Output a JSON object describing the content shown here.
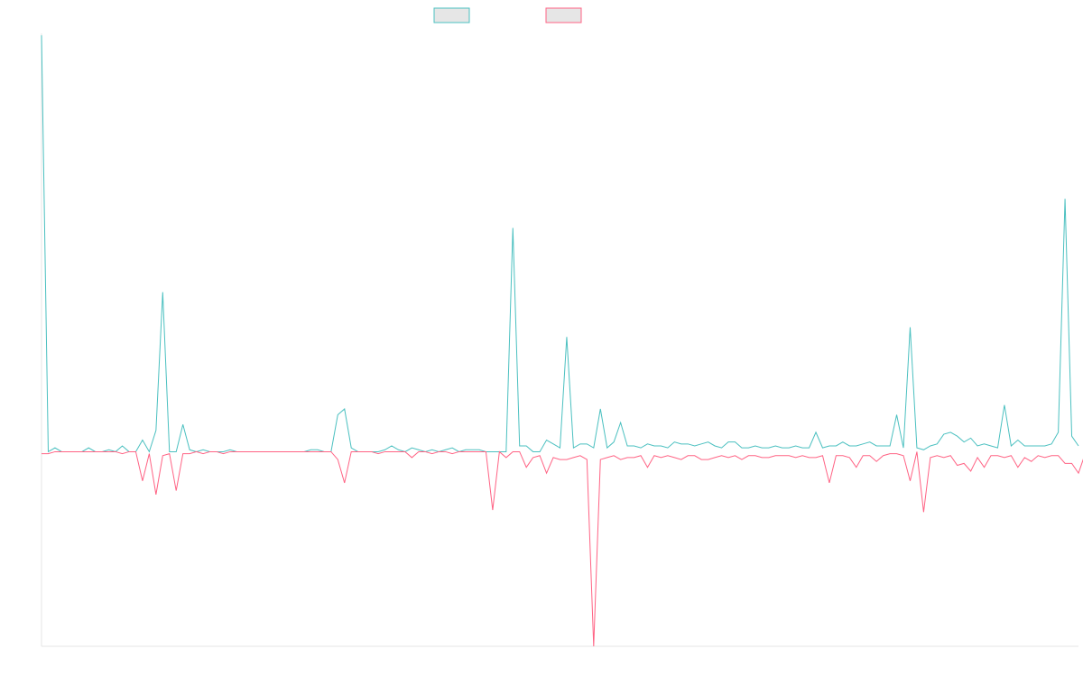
{
  "chart_data": {
    "type": "line",
    "title": "",
    "xlabel": "",
    "ylabel": "",
    "grid": false,
    "legend_placement": "top-center",
    "ylim": [
      -100,
      215
    ],
    "series": [
      {
        "name": "",
        "color": "#4bc0c0",
        "values": [
          214,
          0,
          2,
          0,
          0,
          0,
          0,
          2,
          0,
          0,
          1,
          0,
          3,
          0,
          0,
          6,
          0,
          11,
          82,
          0,
          0,
          14,
          1,
          0,
          1,
          0,
          0,
          0,
          1,
          0,
          0,
          0,
          0,
          0,
          0,
          0,
          0,
          0,
          0,
          0,
          1,
          1,
          0,
          0,
          19,
          22,
          2,
          0,
          0,
          0,
          0,
          1,
          3,
          1,
          0,
          2,
          1,
          0,
          1,
          0,
          1,
          2,
          0,
          1,
          1,
          1,
          0,
          0,
          0,
          0,
          115,
          3,
          3,
          0,
          0,
          6,
          4,
          2,
          59,
          2,
          4,
          4,
          2,
          22,
          2,
          5,
          15,
          3,
          3,
          2,
          4,
          3,
          3,
          2,
          5,
          4,
          4,
          3,
          4,
          5,
          3,
          2,
          5,
          5,
          2,
          2,
          3,
          2,
          2,
          3,
          2,
          2,
          3,
          2,
          2,
          10,
          2,
          3,
          3,
          5,
          3,
          3,
          4,
          5,
          3,
          3,
          3,
          19,
          2,
          64,
          2,
          1,
          3,
          4,
          9,
          10,
          8,
          5,
          7,
          3,
          4,
          3,
          2,
          24,
          3,
          6,
          3,
          3,
          3,
          3,
          4,
          10,
          130,
          8,
          3
        ]
      },
      {
        "name": "",
        "color": "#ff6384",
        "values": [
          -1,
          -1,
          0,
          0,
          0,
          0,
          0,
          0,
          0,
          0,
          0,
          0,
          -1,
          0,
          0,
          -15,
          -1,
          -22,
          -2,
          -1,
          -20,
          -1,
          -1,
          0,
          -1,
          0,
          0,
          -1,
          0,
          0,
          0,
          0,
          0,
          0,
          0,
          0,
          0,
          0,
          0,
          0,
          0,
          0,
          0,
          0,
          -4,
          -16,
          0,
          0,
          0,
          0,
          -1,
          0,
          0,
          0,
          0,
          -3,
          0,
          0,
          -1,
          0,
          0,
          -1,
          0,
          0,
          0,
          0,
          0,
          -30,
          0,
          -3,
          0,
          0,
          -8,
          -3,
          -2,
          -11,
          -3,
          -4,
          -4,
          -3,
          -2,
          -4,
          -100,
          -4,
          -3,
          -2,
          -4,
          -3,
          -3,
          -2,
          -8,
          -2,
          -3,
          -2,
          -3,
          -4,
          -2,
          -2,
          -4,
          -4,
          -3,
          -2,
          -3,
          -2,
          -4,
          -2,
          -2,
          -3,
          -3,
          -2,
          -2,
          -2,
          -3,
          -2,
          -3,
          -3,
          -2,
          -16,
          -2,
          -2,
          -3,
          -8,
          -2,
          -2,
          -5,
          -2,
          -1,
          -1,
          -2,
          -15,
          0,
          -31,
          -3,
          -2,
          -3,
          -2,
          -7,
          -6,
          -10,
          -3,
          -8,
          -2,
          -2,
          -3,
          -2,
          -8,
          -3,
          -5,
          -2,
          -3,
          -2,
          -2,
          -6,
          -6,
          -11,
          -1
        ]
      }
    ]
  }
}
